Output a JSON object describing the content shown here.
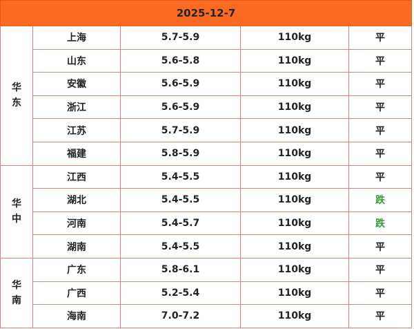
{
  "header": {
    "date": "2025-12-7"
  },
  "colors": {
    "header_bg": "#fa6a22",
    "border": "#d98080",
    "down": "#3a9a3a"
  },
  "groups": [
    {
      "region": [
        "华",
        "东"
      ],
      "rows": [
        {
          "province": "上海",
          "price": "5.7-5.9",
          "weight": "110kg",
          "trend": "平"
        },
        {
          "province": "山东",
          "price": "5.6-5.8",
          "weight": "110kg",
          "trend": "平"
        },
        {
          "province": "安徽",
          "price": "5.6-5.9",
          "weight": "110kg",
          "trend": "平"
        },
        {
          "province": "浙江",
          "price": "5.6-5.9",
          "weight": "110kg",
          "trend": "平"
        },
        {
          "province": "江苏",
          "price": "5.7-5.9",
          "weight": "110kg",
          "trend": "平"
        },
        {
          "province": "福建",
          "price": "5.8-5.9",
          "weight": "110kg",
          "trend": "平"
        }
      ]
    },
    {
      "region": [
        "华",
        "中"
      ],
      "rows": [
        {
          "province": "江西",
          "price": "5.4-5.5",
          "weight": "110kg",
          "trend": "平"
        },
        {
          "province": "湖北",
          "price": "5.4-5.5",
          "weight": "110kg",
          "trend": "跌"
        },
        {
          "province": "河南",
          "price": "5.4-5.7",
          "weight": "110kg",
          "trend": "跌"
        },
        {
          "province": "湖南",
          "price": "5.4-5.5",
          "weight": "110kg",
          "trend": "平"
        }
      ]
    },
    {
      "region": [
        "华",
        "南"
      ],
      "rows": [
        {
          "province": "广东",
          "price": "5.8-6.1",
          "weight": "110kg",
          "trend": "平"
        },
        {
          "province": "广西",
          "price": "5.2-5.4",
          "weight": "110kg",
          "trend": "平"
        },
        {
          "province": "海南",
          "price": "7.0-7.2",
          "weight": "110kg",
          "trend": "平"
        }
      ]
    }
  ]
}
